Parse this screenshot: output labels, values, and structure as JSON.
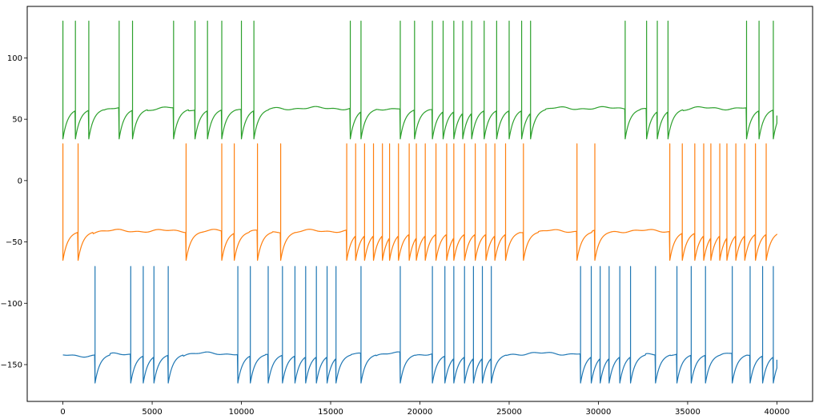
{
  "chart_data": {
    "type": "line",
    "title": "",
    "xlabel": "",
    "ylabel": "",
    "xlim": [
      -2000,
      42000
    ],
    "ylim": [
      -180,
      142
    ],
    "grid": false,
    "legend": "none",
    "x_ticks": [
      0,
      5000,
      10000,
      15000,
      20000,
      25000,
      30000,
      35000,
      40000
    ],
    "x_tick_labels": [
      "0",
      "5000",
      "10000",
      "15000",
      "20000",
      "25000",
      "30000",
      "35000",
      "40000"
    ],
    "y_ticks": [
      100,
      50,
      0,
      -50,
      -100,
      -150
    ],
    "y_tick_labels": [
      "100",
      "50",
      "0",
      "−50",
      "−100",
      "−150"
    ],
    "series": [
      {
        "color": "#2ca02c",
        "rest": 59,
        "reset": 34,
        "peak": 130,
        "spike_times": [
          0,
          700,
          1450,
          3150,
          3900,
          6200,
          7400,
          8100,
          8900,
          10000,
          10700,
          16100,
          16700,
          18900,
          19700,
          20700,
          21300,
          21900,
          22400,
          22900,
          23600,
          24300,
          25000,
          25700,
          26200,
          31500,
          32700,
          33300,
          33900,
          38300,
          39000,
          39800
        ],
        "end_value": 53
      },
      {
        "color": "#ff7f0e",
        "rest": -41,
        "reset": -65,
        "peak": 30,
        "spike_times": [
          0,
          850,
          6900,
          8900,
          9600,
          10900,
          12200,
          15900,
          16400,
          16900,
          17400,
          17900,
          18300,
          18800,
          19400,
          19800,
          20300,
          20900,
          21500,
          21900,
          22500,
          23100,
          23700,
          24200,
          24800,
          25800,
          28800,
          29800,
          34000,
          34700,
          35400,
          35900,
          36300,
          36800,
          37200,
          37700,
          38200,
          38800,
          39400
        ],
        "end_value": -44
      },
      {
        "color": "#1f77b4",
        "rest": -141,
        "reset": -165,
        "peak": -70,
        "spike_times": [
          1800,
          3800,
          4500,
          5100,
          5900,
          9800,
          10500,
          11500,
          12300,
          13000,
          13600,
          14200,
          14800,
          15300,
          16700,
          18900,
          20700,
          21400,
          21900,
          22500,
          23000,
          23500,
          24000,
          29000,
          29600,
          30100,
          30600,
          31200,
          31800,
          33200,
          34400,
          35200,
          36000,
          37500,
          38500,
          39200,
          39800
        ],
        "end_value": -146
      }
    ]
  }
}
